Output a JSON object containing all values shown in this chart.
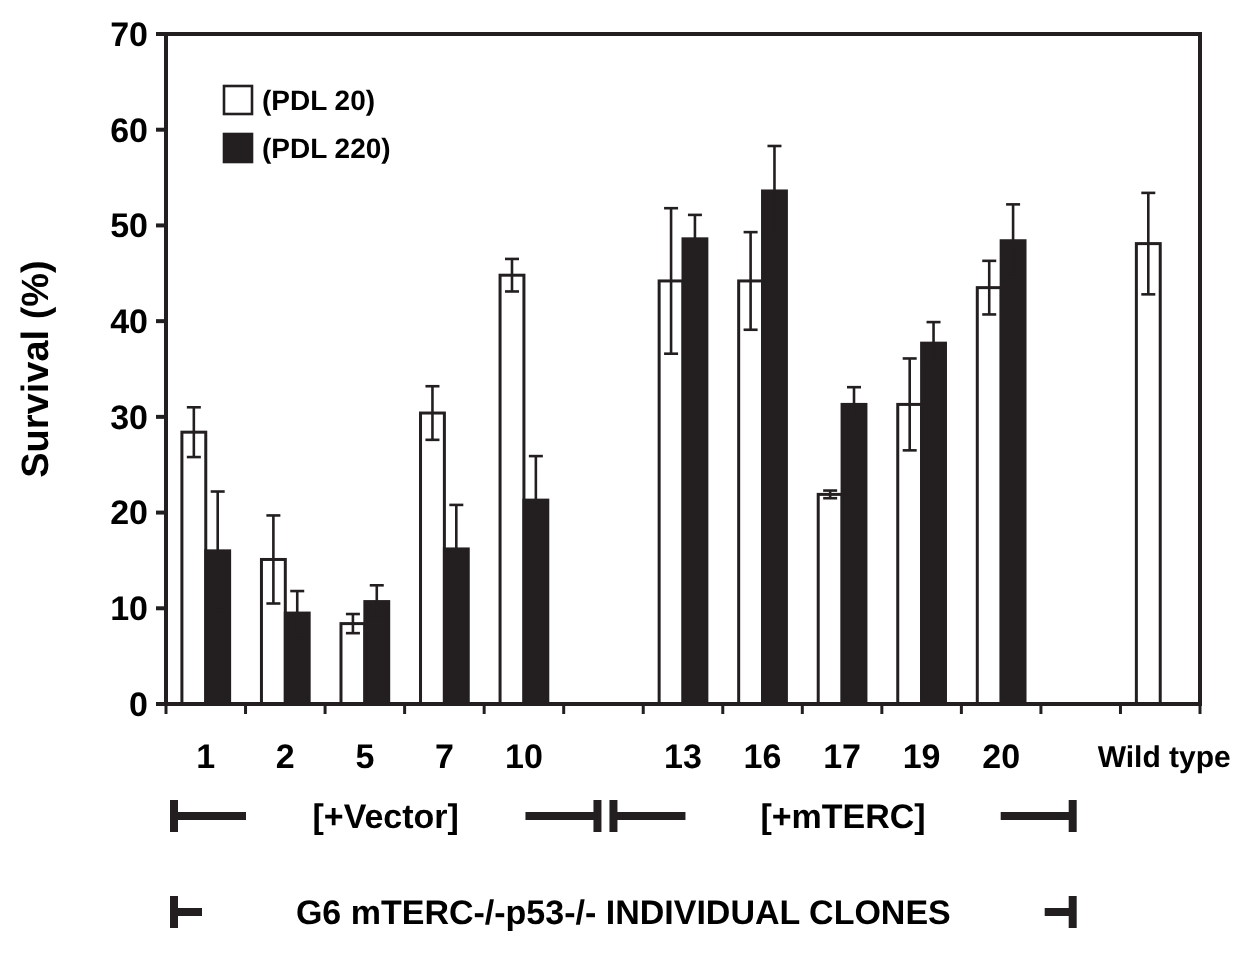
{
  "chart_data": {
    "type": "bar",
    "ylabel": "Survival (%)",
    "categories": [
      "1",
      "2",
      "5",
      "7",
      "10",
      null,
      "13",
      "16",
      "17",
      "19",
      "20",
      null,
      "Wild type"
    ],
    "series": [
      {
        "name": "(PDL 20)",
        "color": "#ffffff",
        "values": [
          28.4,
          15.1,
          8.4,
          30.4,
          44.8,
          null,
          44.2,
          44.2,
          21.9,
          31.3,
          43.5,
          null,
          48.1
        ],
        "errors": [
          2.6,
          4.6,
          1,
          2.8,
          1.7,
          null,
          7.6,
          5.1,
          0.4,
          4.8,
          2.8,
          null,
          5.3
        ]
      },
      {
        "name": "(PDL 220)",
        "color": "#231f20",
        "values": [
          16,
          9.5,
          10.7,
          16.2,
          21.3,
          null,
          48.6,
          53.6,
          31.3,
          37.7,
          48.4,
          null,
          null
        ],
        "errors": [
          6.2,
          2.3,
          1.7,
          4.6,
          4.6,
          null,
          2.5,
          4.7,
          1.8,
          2.2,
          3.8,
          null,
          null
        ]
      }
    ],
    "ylim": [
      0,
      70
    ],
    "yticks": [
      0,
      10,
      20,
      30,
      40,
      50,
      60,
      70
    ],
    "grid": false,
    "legend": "top left",
    "annotations": [
      "[+Vector]",
      "[+mTERC]",
      "G6 mTERC-/-p53-/- INDIVIDUAL CLONES"
    ]
  }
}
